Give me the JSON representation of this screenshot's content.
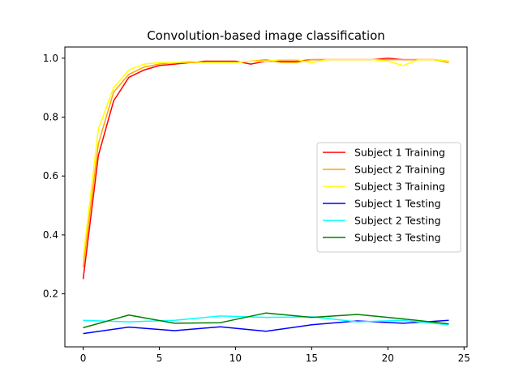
{
  "chart_data": {
    "type": "line",
    "title": "Convolution-based image classification",
    "xlabel": "",
    "ylabel": "",
    "xlim": [
      -1.2,
      25.2
    ],
    "ylim": [
      0.02,
      1.038
    ],
    "xticks": [
      0,
      5,
      10,
      15,
      20,
      25
    ],
    "yticks": [
      0.2,
      0.4,
      0.6,
      0.8,
      1.0
    ],
    "xtick_labels": [
      "0",
      "5",
      "10",
      "15",
      "20",
      "25"
    ],
    "ytick_labels": [
      "0.2",
      "0.4",
      "0.6",
      "0.8",
      "1.0"
    ],
    "grid": false,
    "legend_position": "center-right",
    "series": [
      {
        "name": "Subject 1 Training",
        "color": "#ff0000",
        "x": [
          0,
          1,
          2,
          3,
          4,
          5,
          6,
          7,
          8,
          9,
          10,
          11,
          12,
          13,
          14,
          15,
          16,
          17,
          18,
          19,
          20,
          21,
          22,
          23,
          24
        ],
        "values": [
          0.25,
          0.67,
          0.855,
          0.935,
          0.96,
          0.975,
          0.98,
          0.985,
          0.99,
          0.99,
          0.99,
          0.98,
          0.99,
          0.99,
          0.99,
          0.995,
          0.995,
          0.995,
          0.995,
          0.995,
          1.0,
          0.995,
          0.995,
          0.995,
          0.99
        ]
      },
      {
        "name": "Subject 2 Training",
        "color": "#ffa500",
        "x": [
          0,
          1,
          2,
          3,
          4,
          5,
          6,
          7,
          8,
          9,
          10,
          11,
          12,
          13,
          14,
          15,
          16,
          17,
          18,
          19,
          20,
          21,
          22,
          23,
          24
        ],
        "values": [
          0.29,
          0.71,
          0.885,
          0.945,
          0.97,
          0.98,
          0.985,
          0.985,
          0.985,
          0.985,
          0.985,
          0.99,
          0.995,
          0.985,
          0.985,
          0.995,
          0.995,
          0.995,
          0.995,
          0.995,
          0.995,
          0.995,
          0.995,
          0.995,
          0.985
        ]
      },
      {
        "name": "Subject 3 Training",
        "color": "#ffff00",
        "x": [
          0,
          1,
          2,
          3,
          4,
          5,
          6,
          7,
          8,
          9,
          10,
          11,
          12,
          13,
          14,
          15,
          16,
          17,
          18,
          19,
          20,
          21,
          22,
          23,
          24
        ],
        "values": [
          0.32,
          0.76,
          0.9,
          0.96,
          0.98,
          0.985,
          0.985,
          0.99,
          0.985,
          0.985,
          0.985,
          0.99,
          0.99,
          0.995,
          0.995,
          0.985,
          0.995,
          0.995,
          0.995,
          0.995,
          0.99,
          0.975,
          0.995,
          0.995,
          0.99
        ]
      },
      {
        "name": "Subject 1 Testing",
        "color": "#0000ff",
        "x": [
          0,
          3,
          6,
          9,
          12,
          15,
          18,
          21,
          24
        ],
        "values": [
          0.065,
          0.087,
          0.075,
          0.088,
          0.073,
          0.095,
          0.108,
          0.1,
          0.11
        ]
      },
      {
        "name": "Subject 2 Testing",
        "color": "#00ffff",
        "x": [
          0,
          3,
          6,
          9,
          12,
          15,
          18,
          21,
          24
        ],
        "values": [
          0.11,
          0.105,
          0.11,
          0.125,
          0.12,
          0.122,
          0.105,
          0.11,
          0.095
        ]
      },
      {
        "name": "Subject 3 Testing",
        "color": "#008000",
        "x": [
          0,
          3,
          6,
          9,
          12,
          15,
          18,
          21,
          24
        ],
        "values": [
          0.085,
          0.128,
          0.1,
          0.102,
          0.135,
          0.12,
          0.13,
          0.115,
          0.098
        ]
      }
    ]
  }
}
